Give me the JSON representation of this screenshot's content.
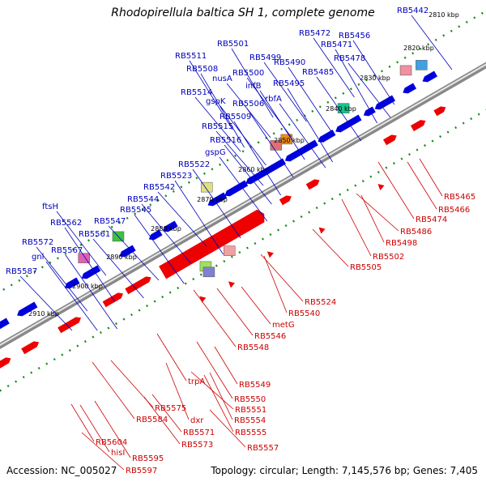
{
  "title": "Rhodopirellula baltica SH 1, complete genome",
  "footer": {
    "accession": "Accession: NC_005027",
    "topology": "Topology: circular; Length: 7,145,576 bp; Genes: 7,405"
  },
  "colors": {
    "forward": "#0000dd",
    "reverse": "#ee0000",
    "backbone": "#888888",
    "ticks": "#1a8a1a",
    "label_upper": "#0000bb",
    "label_lower": "#cc0000"
  },
  "kbp_marks": [
    "2810 kbp",
    "2820 kbp",
    "2830 kbp",
    "2840 kbp",
    "2850 kbp",
    "2860 kbp",
    "2870 kbp",
    "2880 kbp",
    "2890 kbp",
    "2900 kbp",
    "2910 kbp"
  ],
  "upper_labels": [
    "RB5442",
    "RB5472",
    "RB5456",
    "RB5501",
    "RB5471",
    "RB5478",
    "RB5499",
    "RB5490",
    "RB5511",
    "RB5508",
    "nusA",
    "RB5500",
    "RB5485",
    "infB",
    "RB5495",
    "RB5514",
    "gspK",
    "rbfA",
    "RB5506",
    "RB5509",
    "RB5515",
    "RB5516",
    "gspG",
    "RB5522",
    "RB5523",
    "RB5542",
    "RB5544",
    "ftsH",
    "RB5545",
    "RB5562",
    "RB5547",
    "RB5561",
    "RB5572",
    "gnl",
    "RB5567",
    "RB5587"
  ],
  "lower_labels": [
    "RB5465",
    "RB5466",
    "RB5474",
    "RB5486",
    "RB5498",
    "RB5502",
    "RB5505",
    "RB5524",
    "RB5540",
    "metG",
    "RB5546",
    "RB5548",
    "RB5549",
    "trpA",
    "RB5550",
    "RB5551",
    "RB5554",
    "RB5555",
    "RB5557",
    "RB5575",
    "dxr",
    "RB5571",
    "RB5573",
    "RB5584",
    "RB5604",
    "hisI",
    "RB5595",
    "RB5597"
  ]
}
